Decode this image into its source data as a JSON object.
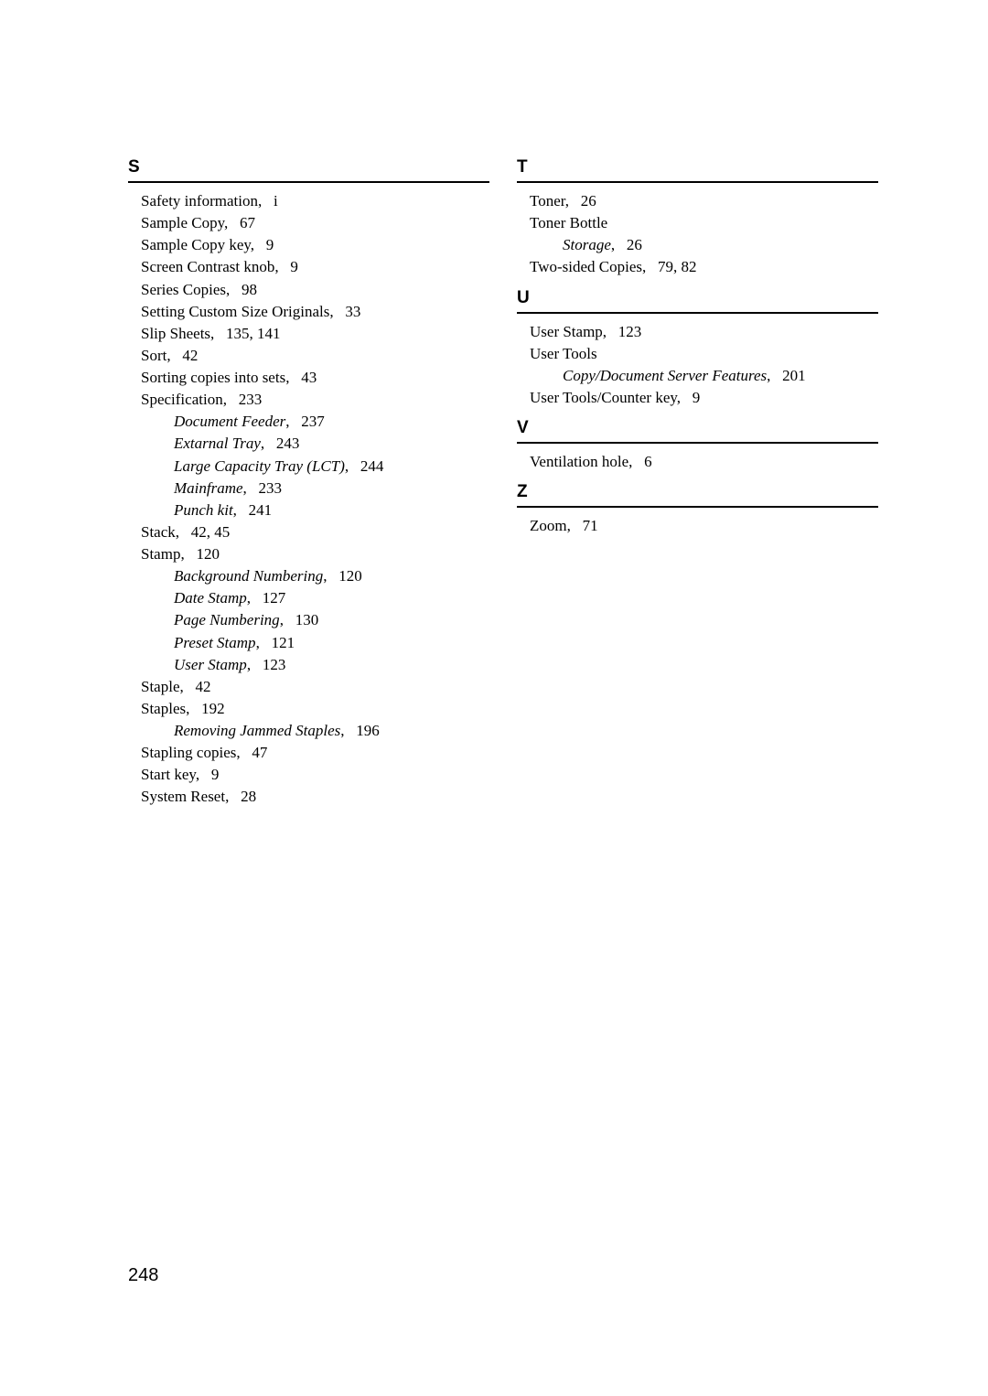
{
  "sections": {
    "S": {
      "header": "S",
      "items": [
        {
          "term": "Safety information",
          "pages": "i"
        },
        {
          "term": "Sample Copy",
          "pages": "67"
        },
        {
          "term": "Sample Copy key",
          "pages": "9"
        },
        {
          "term": "Screen Contrast knob",
          "pages": "9"
        },
        {
          "term": "Series Copies",
          "pages": "98"
        },
        {
          "term": "Setting Custom Size Originals",
          "pages": "33"
        },
        {
          "term": "Slip Sheets",
          "pages": "135, 141"
        },
        {
          "term": "Sort",
          "pages": "42"
        },
        {
          "term": "Sorting copies into sets",
          "pages": "43"
        },
        {
          "term": "Specification",
          "pages": "233",
          "subs": [
            {
              "term": "Document Feeder",
              "pages": "237"
            },
            {
              "term": "Extarnal Tray",
              "pages": "243"
            },
            {
              "term": "Large Capacity Tray (LCT)",
              "pages": "244"
            },
            {
              "term": "Mainframe",
              "pages": "233"
            },
            {
              "term": "Punch kit",
              "pages": "241"
            }
          ]
        },
        {
          "term": "Stack",
          "pages": "42, 45"
        },
        {
          "term": "Stamp",
          "pages": "120",
          "subs": [
            {
              "term": "Background Numbering",
              "pages": "120"
            },
            {
              "term": "Date Stamp",
              "pages": "127"
            },
            {
              "term": "Page Numbering",
              "pages": "130"
            },
            {
              "term": "Preset Stamp",
              "pages": "121"
            },
            {
              "term": "User Stamp",
              "pages": "123"
            }
          ]
        },
        {
          "term": "Staple",
          "pages": "42"
        },
        {
          "term": "Staples",
          "pages": "192",
          "subs": [
            {
              "term": "Removing Jammed Staples",
              "pages": "196"
            }
          ]
        },
        {
          "term": "Stapling copies",
          "pages": "47"
        },
        {
          "term": "Start key",
          "pages": "9"
        },
        {
          "term": "System Reset",
          "pages": "28"
        }
      ]
    },
    "T": {
      "header": "T",
      "items": [
        {
          "term": "Toner",
          "pages": "26"
        },
        {
          "term": "Toner Bottle",
          "pages": "",
          "subs": [
            {
              "term": "Storage",
              "pages": "26"
            }
          ]
        },
        {
          "term": "Two-sided Copies",
          "pages": "79, 82"
        }
      ]
    },
    "U": {
      "header": "U",
      "items": [
        {
          "term": "User Stamp",
          "pages": "123"
        },
        {
          "term": "User Tools",
          "pages": "",
          "subs": [
            {
              "term": "Copy/Document Server Features",
              "pages": "201"
            }
          ]
        },
        {
          "term": "User Tools/Counter key",
          "pages": "9"
        }
      ]
    },
    "V": {
      "header": "V",
      "items": [
        {
          "term": "Ventilation hole",
          "pages": "6"
        }
      ]
    },
    "Z": {
      "header": "Z",
      "items": [
        {
          "term": "Zoom",
          "pages": "71"
        }
      ]
    }
  },
  "page_number": "248"
}
